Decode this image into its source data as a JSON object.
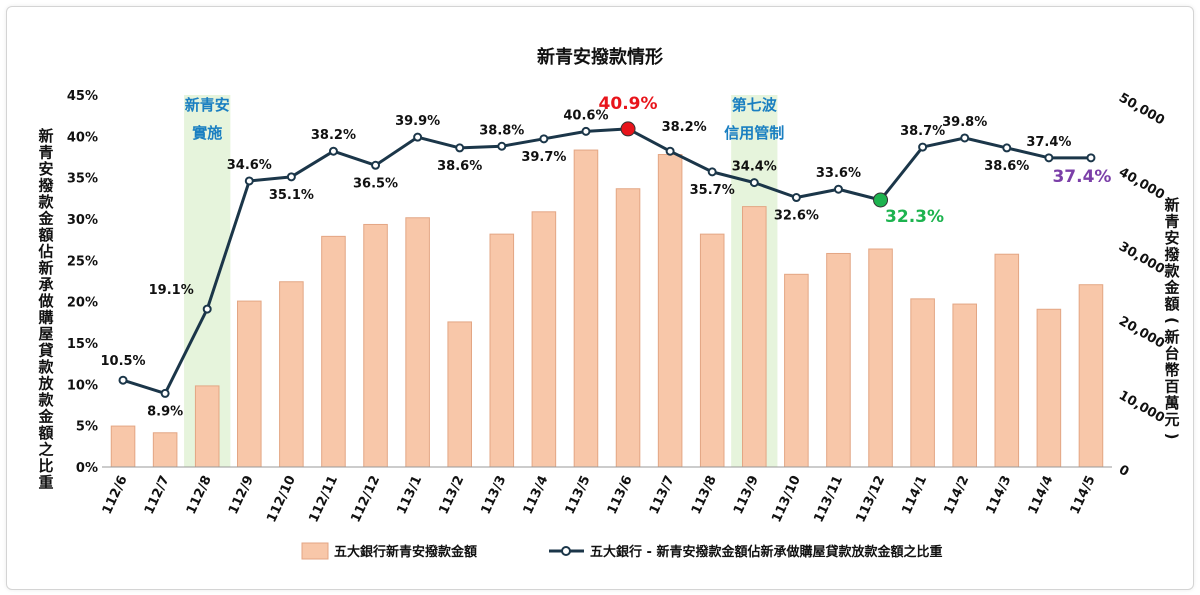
{
  "chart_data": {
    "type": "bar+line",
    "title": "新青安撥款情形",
    "categories": [
      "112/6",
      "112/7",
      "112/8",
      "112/9",
      "112/10",
      "112/11",
      "112/12",
      "113/1",
      "113/2",
      "113/3",
      "113/4",
      "113/5",
      "113/6",
      "113/7",
      "113/8",
      "113/9",
      "113/10",
      "113/11",
      "113/12",
      "114/1",
      "114/2",
      "114/3",
      "114/4",
      "114/5"
    ],
    "series": [
      {
        "name": "五大銀行新青安撥款金額",
        "type": "bar",
        "axis": "right",
        "color": "#f8c7a9",
        "values": [
          5500,
          4600,
          10900,
          22300,
          24900,
          31000,
          32600,
          33500,
          19500,
          31300,
          34300,
          42600,
          37400,
          42000,
          31300,
          35000,
          25900,
          28700,
          29300,
          22600,
          21900,
          28600,
          21200,
          24500
        ]
      },
      {
        "name": "五大銀行 - 新青安撥款金額佔新承做購屋貸款放款金額之比重",
        "type": "line",
        "axis": "left",
        "color": "#1b3649",
        "values": [
          10.5,
          8.9,
          19.1,
          34.6,
          35.1,
          38.2,
          36.5,
          39.9,
          38.6,
          38.8,
          39.7,
          40.6,
          40.9,
          38.2,
          35.7,
          34.4,
          32.6,
          33.6,
          32.3,
          38.7,
          39.8,
          38.6,
          37.4,
          37.4
        ],
        "labels": [
          "10.5%",
          "8.9%",
          "19.1%",
          "34.6%",
          "35.1%",
          "38.2%",
          "36.5%",
          "39.9%",
          "38.6%",
          "38.8%",
          "39.7%",
          "40.6%",
          "40.9%",
          "38.2%",
          "35.7%",
          "34.4%",
          "32.6%",
          "33.6%",
          "32.3%",
          "38.7%",
          "39.8%",
          "38.6%",
          "37.4%",
          "37.4%"
        ]
      }
    ],
    "left_axis": {
      "title": "新青安撥款金額佔新承做購屋貸款放款金額之比重",
      "ylim": [
        0,
        45
      ],
      "ticks": [
        "0%",
        "5%",
        "10%",
        "15%",
        "20%",
        "25%",
        "30%",
        "35%",
        "40%",
        "45%"
      ]
    },
    "right_axis": {
      "title": "新青安撥款金額(新台幣百萬元)",
      "ylim": [
        0,
        50000
      ],
      "ticks": [
        "0",
        "10,000",
        "20,000",
        "30,000",
        "40,000",
        "50,000"
      ]
    },
    "highlights": [
      {
        "index": 12,
        "label": "40.9%",
        "color": "#e8141b"
      },
      {
        "index": 18,
        "label": "32.3%",
        "color": "#1db34f"
      },
      {
        "index": 23,
        "label": "37.4%",
        "color": "#7b3fa8"
      }
    ],
    "annotations": [
      {
        "category": "112/8",
        "lines": [
          "新青安",
          "實施"
        ]
      },
      {
        "category": "113/9",
        "lines": [
          "第七波",
          "信用管制"
        ]
      }
    ],
    "shade_color": "#e6f4dc",
    "legend": {
      "position": "bottom"
    },
    "grid": false
  }
}
